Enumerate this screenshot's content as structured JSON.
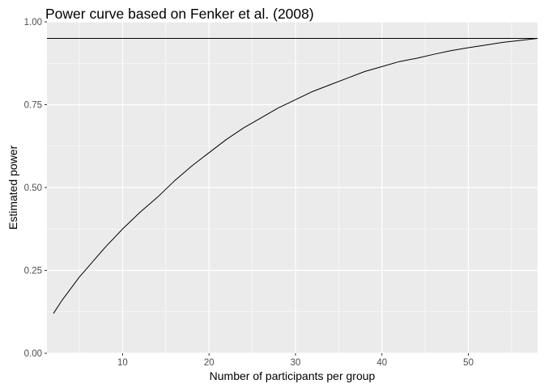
{
  "chart_data": {
    "type": "line",
    "title": "Power curve based on Fenker et al. (2008)",
    "xlabel": "Number of participants per group",
    "ylabel": "Estimated power",
    "xlim": [
      1.25,
      58
    ],
    "ylim": [
      0,
      1
    ],
    "x_ticks": [
      10,
      20,
      30,
      40,
      50
    ],
    "x_tick_labels": [
      "10",
      "20",
      "30",
      "40",
      "50"
    ],
    "y_ticks": [
      0,
      0.25,
      0.5,
      0.75,
      1
    ],
    "y_tick_labels": [
      "0.00",
      "0.25",
      "0.50",
      "0.75",
      "1.00"
    ],
    "grid": true,
    "reference_line": {
      "y": 0.95
    },
    "series": [
      {
        "x": [
          2,
          3,
          4,
          5,
          6,
          7,
          8,
          10,
          12,
          14,
          15,
          16,
          18,
          20,
          22,
          24,
          26,
          28,
          30,
          32,
          34,
          36,
          38,
          40,
          42,
          44,
          46,
          48,
          50,
          52,
          54,
          56,
          58
        ],
        "y": [
          0.12,
          0.16,
          0.195,
          0.23,
          0.26,
          0.29,
          0.32,
          0.375,
          0.425,
          0.47,
          0.495,
          0.52,
          0.565,
          0.605,
          0.645,
          0.68,
          0.71,
          0.74,
          0.765,
          0.79,
          0.81,
          0.83,
          0.85,
          0.865,
          0.88,
          0.89,
          0.902,
          0.913,
          0.922,
          0.93,
          0.938,
          0.944,
          0.95
        ]
      }
    ]
  }
}
